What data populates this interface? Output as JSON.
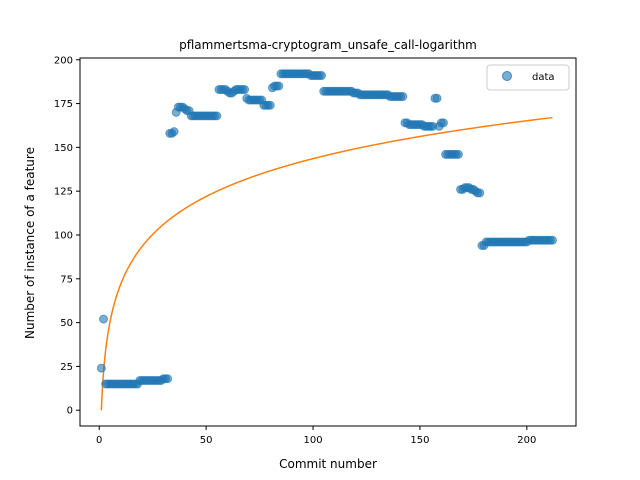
{
  "chart_data": {
    "type": "scatter",
    "title": "pflammertsma-cryptogram_unsafe_call-logarithm",
    "xlabel": "Commit number",
    "ylabel": "Number of instance of a feature",
    "xlim": [
      -9,
      223
    ],
    "ylim": [
      -9,
      201
    ],
    "x_ticks": [
      0,
      50,
      100,
      150,
      200
    ],
    "y_ticks": [
      0,
      25,
      50,
      75,
      100,
      125,
      150,
      175,
      200
    ],
    "legend": {
      "position": "top-right",
      "entries": [
        {
          "label": "data",
          "color": "#1f77b4"
        }
      ]
    },
    "colors": {
      "points": "#1f77b4",
      "fit": "#ff7f0e"
    },
    "series": [
      {
        "name": "data",
        "kind": "points",
        "points": [
          [
            1,
            24
          ],
          [
            2,
            52
          ],
          [
            3,
            15
          ],
          [
            4,
            15
          ],
          [
            5,
            15
          ],
          [
            6,
            15
          ],
          [
            7,
            15
          ],
          [
            8,
            15
          ],
          [
            9,
            15
          ],
          [
            10,
            15
          ],
          [
            11,
            15
          ],
          [
            12,
            15
          ],
          [
            13,
            15
          ],
          [
            14,
            15
          ],
          [
            15,
            15
          ],
          [
            16,
            15
          ],
          [
            17,
            15
          ],
          [
            18,
            15
          ],
          [
            19,
            17
          ],
          [
            20,
            17
          ],
          [
            21,
            17
          ],
          [
            22,
            17
          ],
          [
            23,
            17
          ],
          [
            24,
            17
          ],
          [
            25,
            17
          ],
          [
            26,
            17
          ],
          [
            27,
            17
          ],
          [
            28,
            17
          ],
          [
            29,
            17
          ],
          [
            30,
            18
          ],
          [
            31,
            18
          ],
          [
            32,
            18
          ],
          [
            33,
            158
          ],
          [
            34,
            158
          ],
          [
            35,
            159
          ],
          [
            36,
            170
          ],
          [
            37,
            173
          ],
          [
            38,
            173
          ],
          [
            39,
            173
          ],
          [
            40,
            172
          ],
          [
            41,
            171
          ],
          [
            42,
            171
          ],
          [
            43,
            168
          ],
          [
            44,
            168
          ],
          [
            45,
            168
          ],
          [
            46,
            168
          ],
          [
            47,
            168
          ],
          [
            48,
            168
          ],
          [
            49,
            168
          ],
          [
            50,
            168
          ],
          [
            51,
            168
          ],
          [
            52,
            168
          ],
          [
            53,
            168
          ],
          [
            54,
            168
          ],
          [
            55,
            168
          ],
          [
            56,
            183
          ],
          [
            57,
            183
          ],
          [
            58,
            183
          ],
          [
            59,
            183
          ],
          [
            60,
            182
          ],
          [
            61,
            181
          ],
          [
            62,
            181
          ],
          [
            63,
            182
          ],
          [
            64,
            183
          ],
          [
            65,
            183
          ],
          [
            66,
            183
          ],
          [
            67,
            183
          ],
          [
            68,
            183
          ],
          [
            69,
            178
          ],
          [
            70,
            177
          ],
          [
            71,
            177
          ],
          [
            72,
            177
          ],
          [
            73,
            177
          ],
          [
            74,
            177
          ],
          [
            75,
            177
          ],
          [
            76,
            177
          ],
          [
            77,
            174
          ],
          [
            78,
            174
          ],
          [
            79,
            174
          ],
          [
            80,
            174
          ],
          [
            81,
            184
          ],
          [
            82,
            185
          ],
          [
            83,
            185
          ],
          [
            84,
            185
          ],
          [
            85,
            192
          ],
          [
            86,
            192
          ],
          [
            87,
            192
          ],
          [
            88,
            192
          ],
          [
            89,
            192
          ],
          [
            90,
            192
          ],
          [
            91,
            192
          ],
          [
            92,
            192
          ],
          [
            93,
            192
          ],
          [
            94,
            192
          ],
          [
            95,
            192
          ],
          [
            96,
            192
          ],
          [
            97,
            192
          ],
          [
            98,
            192
          ],
          [
            99,
            191
          ],
          [
            100,
            191
          ],
          [
            101,
            191
          ],
          [
            102,
            191
          ],
          [
            103,
            191
          ],
          [
            104,
            191
          ],
          [
            105,
            182
          ],
          [
            106,
            182
          ],
          [
            107,
            182
          ],
          [
            108,
            182
          ],
          [
            109,
            182
          ],
          [
            110,
            182
          ],
          [
            111,
            182
          ],
          [
            112,
            182
          ],
          [
            113,
            182
          ],
          [
            114,
            182
          ],
          [
            115,
            182
          ],
          [
            116,
            182
          ],
          [
            117,
            182
          ],
          [
            118,
            182
          ],
          [
            119,
            181
          ],
          [
            120,
            181
          ],
          [
            121,
            181
          ],
          [
            122,
            180
          ],
          [
            123,
            180
          ],
          [
            124,
            180
          ],
          [
            125,
            180
          ],
          [
            126,
            180
          ],
          [
            127,
            180
          ],
          [
            128,
            180
          ],
          [
            129,
            180
          ],
          [
            130,
            180
          ],
          [
            131,
            180
          ],
          [
            132,
            180
          ],
          [
            133,
            180
          ],
          [
            134,
            180
          ],
          [
            135,
            180
          ],
          [
            136,
            179
          ],
          [
            137,
            179
          ],
          [
            138,
            179
          ],
          [
            139,
            179
          ],
          [
            140,
            179
          ],
          [
            141,
            179
          ],
          [
            142,
            179
          ],
          [
            143,
            164
          ],
          [
            144,
            164
          ],
          [
            145,
            163
          ],
          [
            146,
            163
          ],
          [
            147,
            163
          ],
          [
            148,
            163
          ],
          [
            149,
            163
          ],
          [
            150,
            163
          ],
          [
            151,
            163
          ],
          [
            152,
            162
          ],
          [
            153,
            162
          ],
          [
            154,
            162
          ],
          [
            155,
            162
          ],
          [
            156,
            162
          ],
          [
            157,
            178
          ],
          [
            158,
            178
          ],
          [
            159,
            162
          ],
          [
            160,
            164
          ],
          [
            161,
            164
          ],
          [
            162,
            146
          ],
          [
            163,
            146
          ],
          [
            164,
            146
          ],
          [
            165,
            146
          ],
          [
            166,
            146
          ],
          [
            167,
            146
          ],
          [
            168,
            146
          ],
          [
            169,
            126
          ],
          [
            170,
            126
          ],
          [
            171,
            127
          ],
          [
            172,
            127
          ],
          [
            173,
            127
          ],
          [
            174,
            126
          ],
          [
            175,
            126
          ],
          [
            176,
            125
          ],
          [
            177,
            124
          ],
          [
            178,
            124
          ],
          [
            179,
            94
          ],
          [
            180,
            94
          ],
          [
            181,
            96
          ],
          [
            182,
            96
          ],
          [
            183,
            96
          ],
          [
            184,
            96
          ],
          [
            185,
            96
          ],
          [
            186,
            96
          ],
          [
            187,
            96
          ],
          [
            188,
            96
          ],
          [
            189,
            96
          ],
          [
            190,
            96
          ],
          [
            191,
            96
          ],
          [
            192,
            96
          ],
          [
            193,
            96
          ],
          [
            194,
            96
          ],
          [
            195,
            96
          ],
          [
            196,
            96
          ],
          [
            197,
            96
          ],
          [
            198,
            96
          ],
          [
            199,
            96
          ],
          [
            200,
            96
          ],
          [
            201,
            97
          ],
          [
            202,
            97
          ],
          [
            203,
            97
          ],
          [
            204,
            97
          ],
          [
            205,
            97
          ],
          [
            206,
            97
          ],
          [
            207,
            97
          ],
          [
            208,
            97
          ],
          [
            209,
            97
          ],
          [
            210,
            97
          ],
          [
            211,
            97
          ],
          [
            212,
            97
          ]
        ]
      },
      {
        "kind": "line",
        "model": "logarithmic",
        "x_range": [
          1,
          212
        ],
        "y_at_start": 0,
        "y_at_end": 167
      }
    ]
  }
}
